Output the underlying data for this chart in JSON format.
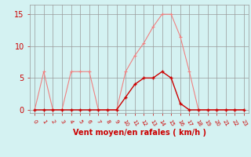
{
  "x": [
    0,
    1,
    2,
    3,
    4,
    5,
    6,
    7,
    8,
    9,
    10,
    11,
    12,
    13,
    14,
    15,
    16,
    17,
    18,
    19,
    20,
    21,
    22,
    23
  ],
  "rafales": [
    0,
    6,
    0,
    0,
    6,
    6,
    6,
    0,
    0,
    0,
    6,
    8.5,
    10.5,
    13,
    15,
    15,
    11.5,
    6,
    0,
    0,
    0,
    0,
    0,
    0
  ],
  "moyen": [
    0,
    0,
    0,
    0,
    0,
    0,
    0,
    0,
    0,
    0,
    2,
    4,
    5,
    5,
    6,
    5,
    1,
    0,
    0,
    0,
    0,
    0,
    0,
    0
  ],
  "bg_color": "#d4f2f2",
  "grid_color": "#999999",
  "line_color_rafales": "#f08080",
  "line_color_moyen": "#cc0000",
  "xlabel": "Vent moyen/en rafales ( km/h )",
  "xlabel_color": "#cc0000",
  "tick_color": "#cc0000",
  "yticks": [
    0,
    5,
    10,
    15
  ],
  "ylim": [
    -0.5,
    16.5
  ],
  "xlim": [
    -0.5,
    23.5
  ],
  "xtick_labels": [
    "0",
    "1",
    "2",
    "3",
    "4",
    "5",
    "6",
    "7",
    "8",
    "9",
    "10",
    "11",
    "12",
    "13",
    "14",
    "15",
    "16",
    "17",
    "18",
    "19",
    "20",
    "21",
    "22",
    "23"
  ]
}
